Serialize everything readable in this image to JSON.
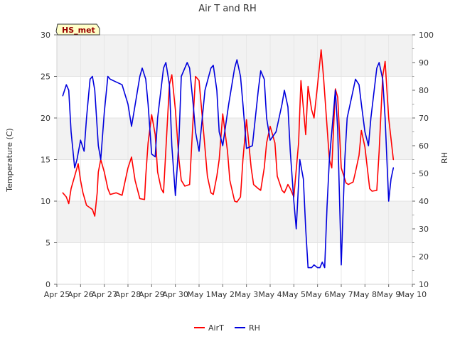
{
  "chart_data": {
    "type": "line",
    "title": "Air T and RH",
    "station_label": "HS_met",
    "xlabel": "",
    "ylabel_left": "Temperature (C)",
    "ylabel_right": "RH",
    "x_domain": [
      0,
      15
    ],
    "x_ticks": [
      {
        "value": 0,
        "label": "Apr 25"
      },
      {
        "value": 1,
        "label": "Apr 26"
      },
      {
        "value": 2,
        "label": "Apr 27"
      },
      {
        "value": 3,
        "label": "Apr 28"
      },
      {
        "value": 4,
        "label": "Apr 29"
      },
      {
        "value": 5,
        "label": "Apr 30"
      },
      {
        "value": 6,
        "label": "May 1"
      },
      {
        "value": 7,
        "label": "May 2"
      },
      {
        "value": 8,
        "label": "May 3"
      },
      {
        "value": 9,
        "label": "May 4"
      },
      {
        "value": 10,
        "label": "May 5"
      },
      {
        "value": 11,
        "label": "May 6"
      },
      {
        "value": 12,
        "label": "May 7"
      },
      {
        "value": 13,
        "label": "May 8"
      },
      {
        "value": 14,
        "label": "May 9"
      },
      {
        "value": 15,
        "label": "May 10"
      }
    ],
    "ylim_left": [
      0,
      30
    ],
    "yticks_left": [
      0,
      5,
      10,
      15,
      20,
      25,
      30
    ],
    "ylim_right": [
      10,
      100
    ],
    "yticks_right": [
      10,
      20,
      30,
      40,
      50,
      60,
      70,
      80,
      90,
      100
    ],
    "legend_position": "bottom-center",
    "series": [
      {
        "name": "AirT",
        "color": "#ff0000",
        "axis": "left",
        "x": [
          0.25,
          0.4,
          0.5,
          0.6,
          0.75,
          0.9,
          1.0,
          1.1,
          1.25,
          1.5,
          1.6,
          1.7,
          1.75,
          1.85,
          2.0,
          2.15,
          2.25,
          2.5,
          2.75,
          3.0,
          3.15,
          3.3,
          3.5,
          3.7,
          3.75,
          3.85,
          4.0,
          4.15,
          4.25,
          4.4,
          4.5,
          4.75,
          4.85,
          5.0,
          5.15,
          5.25,
          5.4,
          5.6,
          5.75,
          5.85,
          6.0,
          6.2,
          6.35,
          6.5,
          6.6,
          6.75,
          6.85,
          7.0,
          7.2,
          7.3,
          7.5,
          7.6,
          7.75,
          7.85,
          8.0,
          8.2,
          8.3,
          8.5,
          8.6,
          8.75,
          8.85,
          9.0,
          9.2,
          9.3,
          9.5,
          9.6,
          9.75,
          9.85,
          10.0,
          10.2,
          10.3,
          10.5,
          10.6,
          10.75,
          10.85,
          11.0,
          11.15,
          11.25,
          11.5,
          11.6,
          11.75,
          11.85,
          12.0,
          12.2,
          12.3,
          12.5,
          12.6,
          12.75,
          12.85,
          13.0,
          13.2,
          13.3,
          13.5,
          13.6,
          13.75,
          13.85,
          14.0,
          14.2
        ],
        "y": [
          11.0,
          10.5,
          9.7,
          11.5,
          13.0,
          14.5,
          12.5,
          11.0,
          9.5,
          9.0,
          8.2,
          11.0,
          13.5,
          15.0,
          13.5,
          11.5,
          10.8,
          11.0,
          10.7,
          14.0,
          15.3,
          12.5,
          10.3,
          10.2,
          13.0,
          17.0,
          20.4,
          18.0,
          13.5,
          11.5,
          11.0,
          24.0,
          25.2,
          21.0,
          15.0,
          12.5,
          11.8,
          12.0,
          20.0,
          25.0,
          24.5,
          18.0,
          13.0,
          11.0,
          10.8,
          13.0,
          15.0,
          20.5,
          16.0,
          12.5,
          10.0,
          9.9,
          10.5,
          15.0,
          19.8,
          14.0,
          12.0,
          11.5,
          11.3,
          14.0,
          17.0,
          19.0,
          17.0,
          13.0,
          11.3,
          11.0,
          12.0,
          11.5,
          10.5,
          17.0,
          24.5,
          18.0,
          23.8,
          21.0,
          20.0,
          24.0,
          28.2,
          25.0,
          15.0,
          14.0,
          23.5,
          22.5,
          14.0,
          12.2,
          12.0,
          12.3,
          13.5,
          15.5,
          18.5,
          16.5,
          11.5,
          11.2,
          11.3,
          16.0,
          25.0,
          26.8,
          20.0,
          15.0
        ]
      },
      {
        "name": "RH",
        "color": "#0000dd",
        "axis": "right",
        "x": [
          0.25,
          0.4,
          0.5,
          0.6,
          0.75,
          0.85,
          1.0,
          1.15,
          1.25,
          1.4,
          1.5,
          1.6,
          1.75,
          1.85,
          2.0,
          2.15,
          2.25,
          2.5,
          2.75,
          3.0,
          3.15,
          3.25,
          3.5,
          3.6,
          3.75,
          3.85,
          4.0,
          4.15,
          4.25,
          4.5,
          4.6,
          4.75,
          4.85,
          5.0,
          5.15,
          5.25,
          5.5,
          5.6,
          5.75,
          5.85,
          6.0,
          6.25,
          6.5,
          6.6,
          6.75,
          6.85,
          7.0,
          7.25,
          7.5,
          7.6,
          7.75,
          7.85,
          8.0,
          8.25,
          8.5,
          8.6,
          8.75,
          8.85,
          9.0,
          9.25,
          9.5,
          9.6,
          9.75,
          9.85,
          10.0,
          10.1,
          10.25,
          10.4,
          10.5,
          10.6,
          10.75,
          10.85,
          11.0,
          11.1,
          11.2,
          11.3,
          11.4,
          11.5,
          11.6,
          11.75,
          11.85,
          12.0,
          12.15,
          12.25,
          12.5,
          12.6,
          12.75,
          12.85,
          13.0,
          13.15,
          13.25,
          13.5,
          13.6,
          13.75,
          13.85,
          14.0,
          14.1,
          14.2
        ],
        "y": [
          78,
          82,
          80,
          65,
          52,
          55,
          62,
          58,
          70,
          84,
          85,
          80,
          60,
          55,
          72,
          85,
          84,
          83,
          82,
          75,
          67,
          72,
          85,
          88,
          84,
          75,
          57,
          56,
          70,
          88,
          90,
          82,
          60,
          42,
          62,
          85,
          90,
          88,
          75,
          65,
          58,
          80,
          88,
          89,
          80,
          65,
          60,
          75,
          88,
          91,
          85,
          75,
          59,
          60,
          80,
          87,
          84,
          70,
          62,
          65,
          75,
          80,
          74,
          58,
          40,
          30,
          55,
          48,
          30,
          16,
          16,
          17,
          16,
          16,
          18,
          16,
          38,
          55,
          65,
          80,
          66,
          17,
          55,
          70,
          80,
          84,
          82,
          75,
          65,
          60,
          70,
          88,
          90,
          84,
          70,
          40,
          48,
          52
        ]
      }
    ]
  }
}
